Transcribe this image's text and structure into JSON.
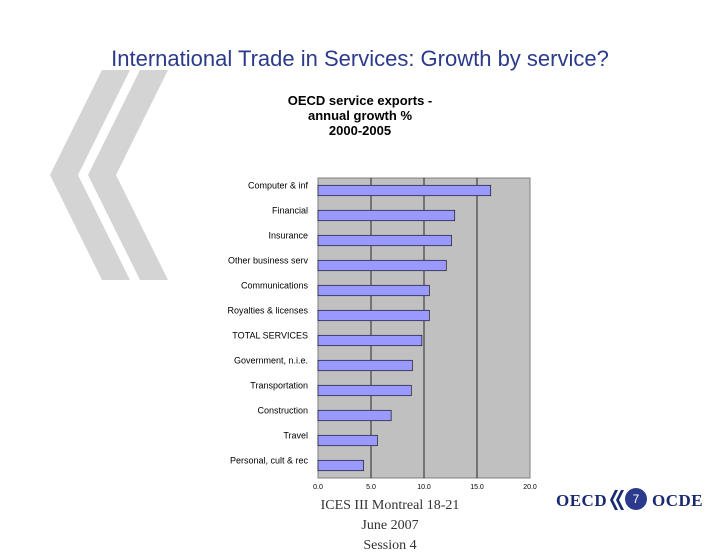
{
  "slide": {
    "title": "International Trade in Services: Growth by service?",
    "footer_line1": "ICES III Montreal 18-21 June 2007",
    "footer_line2": "Session 4",
    "page_number": "7",
    "logo_left": "OECD",
    "logo_right": "OCDE"
  },
  "colors": {
    "title": "#2b3a8c",
    "bar": "#9999ff",
    "plot_bg": "#c0c0c0",
    "chevron": "#d4d4d4"
  },
  "chart_data": {
    "type": "bar",
    "orientation": "horizontal",
    "title_lines": [
      "OECD service exports -",
      "annual growth %",
      "2000-2005"
    ],
    "categories": [
      "Computer & inf",
      "Financial",
      "Insurance",
      "Other business serv",
      "Communications",
      "Royalties & licenses",
      "TOTAL SERVICES",
      "Government, n.i.e.",
      "Transportation",
      "Construction",
      "Travel",
      "Personal, cult & rec"
    ],
    "values": [
      16.3,
      12.9,
      12.6,
      12.1,
      10.5,
      10.5,
      9.8,
      8.9,
      8.8,
      6.9,
      5.6,
      4.3
    ],
    "xlim": [
      0,
      20
    ],
    "xticks": [
      "0.0",
      "5.0",
      "10.0",
      "15.0",
      "20.0"
    ],
    "grid": true,
    "legend": "none"
  }
}
